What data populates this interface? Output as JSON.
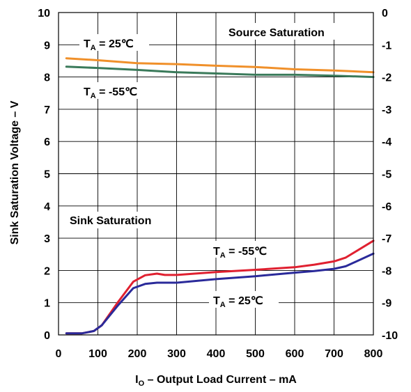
{
  "chart_data": {
    "type": "line",
    "xlabel_main": "I",
    "xlabel_sub": "O",
    "xlabel_rest": " – Output Load Current – mA",
    "ylabel_left": "Sink Saturation Voltage – V",
    "xlim": [
      0,
      800
    ],
    "ylim_left": [
      0,
      10
    ],
    "ylim_right": [
      -10,
      0
    ],
    "x_ticks": [
      0,
      100,
      200,
      300,
      400,
      500,
      600,
      700,
      800
    ],
    "y_left_ticks": [
      0,
      1,
      2,
      3,
      4,
      5,
      6,
      7,
      8,
      9,
      10
    ],
    "y_right_ticks": [
      -10,
      -9,
      -8,
      -7,
      -6,
      -5,
      -4,
      -3,
      -2,
      -1,
      0
    ],
    "grid": true,
    "annotations": {
      "source_saturation": "Source Saturation",
      "sink_saturation": "Sink Saturation",
      "src_25": {
        "main": "T",
        "sub": "A",
        "rest": " = 25℃"
      },
      "src_m55": {
        "main": "T",
        "sub": "A",
        "rest": " = -55℃"
      },
      "sink_m55": {
        "main": "T",
        "sub": "A",
        "rest": " = -55℃"
      },
      "sink_25": {
        "main": "T",
        "sub": "A",
        "rest": " = 25℃"
      }
    },
    "series": [
      {
        "color": "#f0902a",
        "axis": "left",
        "x": [
          20,
          100,
          200,
          300,
          400,
          500,
          600,
          700,
          800
        ],
        "y": [
          8.58,
          8.52,
          8.43,
          8.4,
          8.35,
          8.31,
          8.24,
          8.2,
          8.15
        ]
      },
      {
        "color": "#3a7a5a",
        "axis": "left",
        "x": [
          20,
          100,
          200,
          300,
          400,
          500,
          600,
          700,
          800
        ],
        "y": [
          8.32,
          8.28,
          8.22,
          8.15,
          8.11,
          8.07,
          8.07,
          8.04,
          8.0
        ]
      },
      {
        "color": "#e02030",
        "axis": "left",
        "x": [
          20,
          60,
          90,
          110,
          150,
          190,
          220,
          250,
          270,
          300,
          400,
          500,
          600,
          650,
          700,
          730,
          800
        ],
        "y": [
          0.05,
          0.05,
          0.12,
          0.3,
          1.0,
          1.65,
          1.85,
          1.9,
          1.86,
          1.86,
          1.95,
          2.02,
          2.1,
          2.18,
          2.28,
          2.4,
          2.92
        ]
      },
      {
        "color": "#2a2a9a",
        "axis": "left",
        "x": [
          20,
          60,
          90,
          110,
          150,
          190,
          220,
          250,
          300,
          400,
          500,
          600,
          650,
          700,
          730,
          800
        ],
        "y": [
          0.05,
          0.05,
          0.12,
          0.3,
          0.9,
          1.45,
          1.58,
          1.62,
          1.62,
          1.73,
          1.82,
          1.93,
          1.98,
          2.05,
          2.13,
          2.52
        ]
      }
    ]
  }
}
